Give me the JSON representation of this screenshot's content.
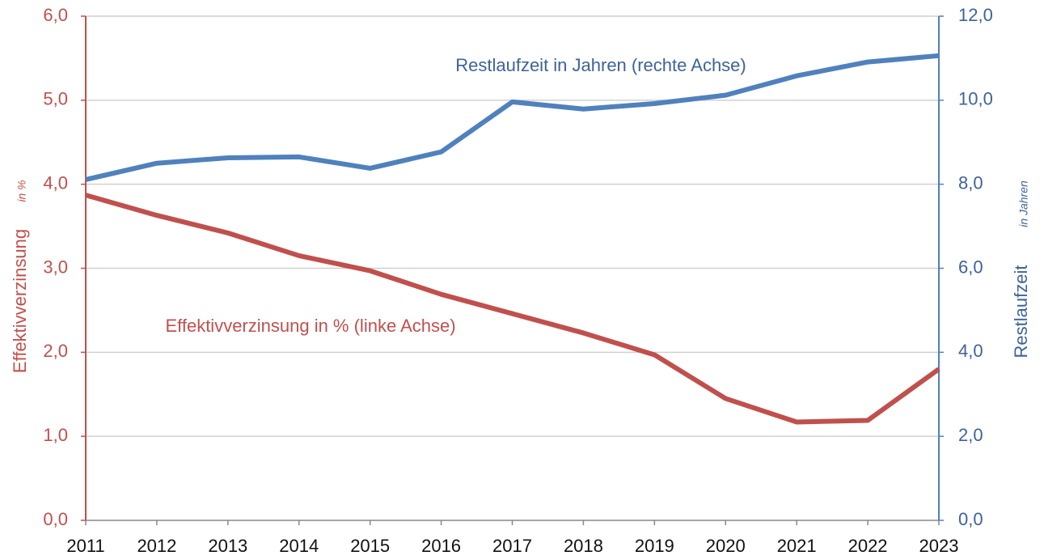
{
  "chart_data": {
    "type": "line",
    "categories": [
      "2011",
      "2012",
      "2013",
      "2014",
      "2015",
      "2016",
      "2017",
      "2018",
      "2019",
      "2020",
      "2021",
      "2022",
      "2023"
    ],
    "series": [
      {
        "name": "Effektivverzinsung",
        "color": "#c0504d",
        "axis": "y",
        "values": [
          3.87,
          3.63,
          3.42,
          3.15,
          2.97,
          2.69,
          2.46,
          2.23,
          1.97,
          1.45,
          1.17,
          1.19,
          1.8
        ]
      },
      {
        "name": "Restlaufzeit",
        "color": "#4f81bd",
        "axis": "y2",
        "values": [
          8.11,
          8.5,
          8.63,
          8.65,
          8.38,
          8.77,
          9.96,
          9.79,
          9.92,
          10.12,
          10.58,
          10.91,
          11.06
        ]
      }
    ],
    "ylabel": "Effektivverzinsung",
    "ylabel_unit": "in %",
    "y2label": "Restlaufzeit",
    "y2label_unit": "in Jahren",
    "annotations": [
      "Restlaufzeit in Jahren (rechte Achse)",
      "Effektivverzinsung in % (linke Achse)"
    ],
    "ylim": [
      0,
      6
    ],
    "yticks": [
      {
        "value": 0,
        "label": "0,0"
      },
      {
        "value": 1,
        "label": "1,0"
      },
      {
        "value": 2,
        "label": "2,0"
      },
      {
        "value": 3,
        "label": "3,0"
      },
      {
        "value": 4,
        "label": "4,0"
      },
      {
        "value": 5,
        "label": "5,0"
      },
      {
        "value": 6,
        "label": "6,0"
      }
    ],
    "y2lim": [
      0,
      12
    ],
    "y2ticks": [
      {
        "value": 0,
        "label": "0,0"
      },
      {
        "value": 2,
        "label": "2,0"
      },
      {
        "value": 4,
        "label": "4,0"
      },
      {
        "value": 6,
        "label": "6,0"
      },
      {
        "value": 8,
        "label": "8,0"
      },
      {
        "value": 10,
        "label": "10,0"
      },
      {
        "value": 12,
        "label": "12,0"
      }
    ],
    "grid": true
  }
}
